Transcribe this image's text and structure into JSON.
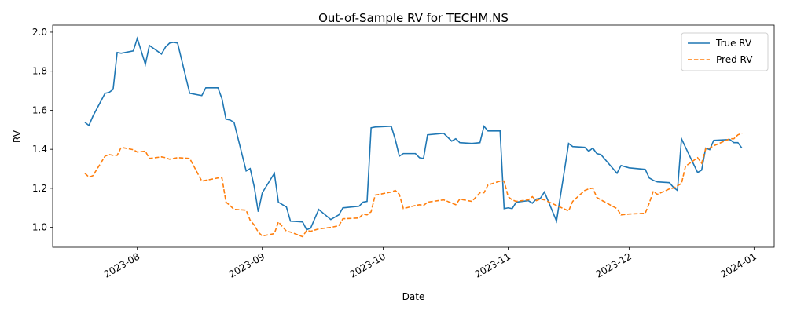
{
  "chart_data": {
    "type": "line",
    "title": "Out-of-Sample RV for TECHM.NS",
    "x_label": "Date",
    "y_label": "RV",
    "x": [
      19557,
      19558,
      19559,
      19562,
      19563,
      19564,
      19565,
      19566,
      19569,
      19570,
      19572,
      19573,
      19576,
      19577,
      19578,
      19579,
      19580,
      19583,
      19586,
      19587,
      19590,
      19591,
      19592,
      19593,
      19594,
      19597,
      19598,
      19599,
      19600,
      19601,
      19604,
      19605,
      19607,
      19608,
      19611,
      19612,
      19613,
      19615,
      19618,
      19620,
      19621,
      19625,
      19626,
      19627,
      19628,
      19629,
      19633,
      19634,
      19635,
      19636,
      19639,
      19640,
      19641,
      19642,
      19646,
      19647,
      19648,
      19649,
      19650,
      19653,
      19655,
      19656,
      19657,
      19660,
      19661,
      19662,
      19663,
      19664,
      19667,
      19668,
      19669,
      19670,
      19671,
      19674,
      19677,
      19678,
      19681,
      19682,
      19683,
      19684,
      19685,
      19689,
      19690,
      19692,
      19696,
      19697,
      19698,
      19699,
      19702,
      19703,
      19704,
      19705,
      19706,
      19709,
      19710,
      19711,
      19712,
      19713,
      19717,
      19718,
      19719,
      19720
    ],
    "series": [
      {
        "name": "True RV",
        "color": "#1f77b4",
        "dash": false,
        "values": [
          1.538,
          1.522,
          1.57,
          1.687,
          1.691,
          1.707,
          1.896,
          1.892,
          1.904,
          1.968,
          1.835,
          1.932,
          1.888,
          1.924,
          1.944,
          1.948,
          1.944,
          1.687,
          1.675,
          1.715,
          1.715,
          1.659,
          1.554,
          1.55,
          1.538,
          1.289,
          1.301,
          1.209,
          1.08,
          1.177,
          1.277,
          1.129,
          1.104,
          1.032,
          1.028,
          0.988,
          0.996,
          1.092,
          1.04,
          1.064,
          1.1,
          1.108,
          1.129,
          1.133,
          1.51,
          1.514,
          1.518,
          1.45,
          1.365,
          1.378,
          1.378,
          1.357,
          1.353,
          1.474,
          1.482,
          1.462,
          1.442,
          1.454,
          1.434,
          1.43,
          1.434,
          1.518,
          1.494,
          1.494,
          1.096,
          1.1,
          1.096,
          1.129,
          1.137,
          1.124,
          1.145,
          1.149,
          1.181,
          1.032,
          1.43,
          1.414,
          1.41,
          1.39,
          1.406,
          1.378,
          1.373,
          1.277,
          1.317,
          1.305,
          1.297,
          1.253,
          1.241,
          1.233,
          1.229,
          1.205,
          1.189,
          1.454,
          1.41,
          1.281,
          1.293,
          1.406,
          1.398,
          1.446,
          1.45,
          1.434,
          1.434,
          1.406
        ]
      },
      {
        "name": "Pred RV",
        "color": "#ff7f0e",
        "dash": true,
        "values": [
          1.277,
          1.257,
          1.265,
          1.365,
          1.373,
          1.369,
          1.369,
          1.41,
          1.398,
          1.386,
          1.39,
          1.353,
          1.361,
          1.357,
          1.349,
          1.353,
          1.357,
          1.353,
          1.237,
          1.241,
          1.253,
          1.253,
          1.129,
          1.112,
          1.092,
          1.088,
          1.036,
          1.012,
          0.976,
          0.956,
          0.968,
          1.028,
          0.98,
          0.976,
          0.952,
          0.984,
          0.98,
          0.992,
          1.0,
          1.008,
          1.044,
          1.048,
          1.068,
          1.064,
          1.08,
          1.165,
          1.181,
          1.189,
          1.169,
          1.096,
          1.112,
          1.116,
          1.112,
          1.129,
          1.141,
          1.133,
          1.124,
          1.116,
          1.145,
          1.133,
          1.177,
          1.177,
          1.217,
          1.237,
          1.237,
          1.157,
          1.141,
          1.133,
          1.141,
          1.157,
          1.137,
          1.145,
          1.141,
          1.112,
          1.084,
          1.133,
          1.189,
          1.197,
          1.201,
          1.153,
          1.141,
          1.096,
          1.064,
          1.068,
          1.072,
          1.124,
          1.185,
          1.169,
          1.197,
          1.201,
          1.213,
          1.225,
          1.313,
          1.357,
          1.329,
          1.402,
          1.406,
          1.418,
          1.454,
          1.454,
          1.474,
          1.482
        ]
      }
    ],
    "xlim": [
      19549,
      19728
    ],
    "xticks": [
      {
        "value": 19570,
        "label": "2023-08"
      },
      {
        "value": 19601,
        "label": "2023-09"
      },
      {
        "value": 19631,
        "label": "2023-10"
      },
      {
        "value": 19662,
        "label": "2023-11"
      },
      {
        "value": 19692,
        "label": "2023-12"
      },
      {
        "value": 19723,
        "label": "2024-01"
      }
    ],
    "ylim": [
      0.898,
      2.036
    ],
    "yticks": [
      {
        "value": 1.0,
        "label": "1.0"
      },
      {
        "value": 1.2,
        "label": "1.2"
      },
      {
        "value": 1.4,
        "label": "1.4"
      },
      {
        "value": 1.6,
        "label": "1.6"
      },
      {
        "value": 1.8,
        "label": "1.8"
      },
      {
        "value": 2.0,
        "label": "2.0"
      }
    ],
    "grid": false,
    "legend": "upper-right"
  }
}
